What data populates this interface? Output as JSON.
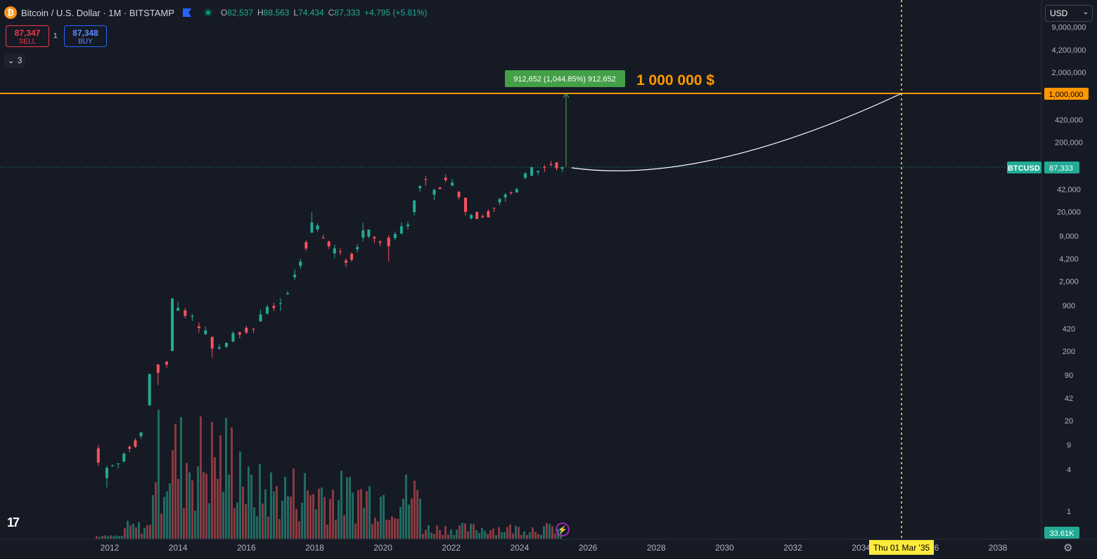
{
  "header": {
    "symbol_title": "Bitcoin / U.S. Dollar · 1M · BITSTAMP",
    "logo_glyph": "₿",
    "ohlc": [
      {
        "key": "O",
        "value": "82,537"
      },
      {
        "key": "H",
        "value": "88,563"
      },
      {
        "key": "L",
        "value": "74,434"
      },
      {
        "key": "C",
        "value": "87,333"
      }
    ],
    "change": "+4,795 (+5.81%)"
  },
  "trade": {
    "sell_price": "87,347",
    "sell_label": "SELL",
    "buy_price": "87,348",
    "buy_label": "BUY",
    "spread": "1"
  },
  "indicators_toggle": {
    "count": "3"
  },
  "currency_select": {
    "selected": "USD"
  },
  "annotations": {
    "target_label": "1 000 000 $",
    "measure_label": "912,652 (1,044.85%) 912,652",
    "date_label": "Thu 01 Mar '35"
  },
  "price_scale": {
    "current_symbol": "BTCUSD",
    "current_price": "87,333",
    "level_label": "1,000,000",
    "volume_label": "33.61K"
  },
  "colors": {
    "up": "#22ab94",
    "down": "#f7525f",
    "target": "#ff9800",
    "date": "#ffeb3b",
    "background": "#161a25"
  },
  "chart_data": {
    "type": "candlestick",
    "scale": "log",
    "interval": "1M",
    "y_ticks": [
      "9,000,000",
      "4,200,000",
      "2,000,000",
      "1,000,000",
      "420,000",
      "200,000",
      "42,000",
      "20,000",
      "9,000",
      "4,200",
      "2,000",
      "900",
      "420",
      "200",
      "90",
      "42",
      "20",
      "9",
      "4",
      "1"
    ],
    "x_ticks": [
      "2012",
      "2014",
      "2016",
      "2018",
      "2020",
      "2022",
      "2024",
      "2026",
      "2028",
      "2030",
      "2032",
      "2034",
      "2036",
      "2038"
    ],
    "target_level": 1000000,
    "target_date": "2035-03-01",
    "current_price": 87333,
    "series": [
      {
        "t": "2011-09",
        "o": 8,
        "h": 9,
        "l": 4.5,
        "c": 5
      },
      {
        "t": "2011-12",
        "o": 3,
        "h": 4.5,
        "l": 2.2,
        "c": 4.2
      },
      {
        "t": "2012-06",
        "o": 5.2,
        "h": 7,
        "l": 5,
        "c": 6.7
      },
      {
        "t": "2012-12",
        "o": 12,
        "h": 14,
        "l": 11,
        "c": 13.5
      },
      {
        "t": "2013-03",
        "o": 33,
        "h": 95,
        "l": 33,
        "c": 93
      },
      {
        "t": "2013-06",
        "o": 128,
        "h": 130,
        "l": 65,
        "c": 97
      },
      {
        "t": "2013-09",
        "o": 140,
        "h": 145,
        "l": 115,
        "c": 128
      },
      {
        "t": "2013-11",
        "o": 200,
        "h": 1160,
        "l": 200,
        "c": 1130
      },
      {
        "t": "2014-01",
        "o": 760,
        "h": 1020,
        "l": 750,
        "c": 830
      },
      {
        "t": "2014-06",
        "o": 630,
        "h": 680,
        "l": 540,
        "c": 640
      },
      {
        "t": "2015-01",
        "o": 320,
        "h": 320,
        "l": 160,
        "c": 217
      },
      {
        "t": "2015-06",
        "o": 230,
        "h": 265,
        "l": 220,
        "c": 263
      },
      {
        "t": "2016-01",
        "o": 430,
        "h": 460,
        "l": 350,
        "c": 368
      },
      {
        "t": "2016-06",
        "o": 530,
        "h": 780,
        "l": 530,
        "c": 670
      },
      {
        "t": "2017-01",
        "o": 970,
        "h": 1150,
        "l": 750,
        "c": 970
      },
      {
        "t": "2017-06",
        "o": 2300,
        "h": 3000,
        "l": 2100,
        "c": 2500
      },
      {
        "t": "2017-12",
        "o": 10000,
        "h": 19600,
        "l": 10000,
        "c": 14000
      },
      {
        "t": "2018-06",
        "o": 7500,
        "h": 7700,
        "l": 5800,
        "c": 6400
      },
      {
        "t": "2018-12",
        "o": 4000,
        "h": 4300,
        "l": 3200,
        "c": 3700
      },
      {
        "t": "2019-06",
        "o": 8500,
        "h": 13800,
        "l": 7500,
        "c": 10800
      },
      {
        "t": "2019-12",
        "o": 7500,
        "h": 7750,
        "l": 6400,
        "c": 7200
      },
      {
        "t": "2020-03",
        "o": 8500,
        "h": 9200,
        "l": 3850,
        "c": 6400
      },
      {
        "t": "2020-12",
        "o": 19700,
        "h": 29300,
        "l": 17600,
        "c": 29000
      },
      {
        "t": "2021-04",
        "o": 58700,
        "h": 64900,
        "l": 47000,
        "c": 57700
      },
      {
        "t": "2021-07",
        "o": 35000,
        "h": 42200,
        "l": 29300,
        "c": 41500
      },
      {
        "t": "2021-11",
        "o": 61300,
        "h": 69000,
        "l": 53000,
        "c": 57000
      },
      {
        "t": "2022-06",
        "o": 31700,
        "h": 31900,
        "l": 17600,
        "c": 19900
      },
      {
        "t": "2022-12",
        "o": 17100,
        "h": 18400,
        "l": 16300,
        "c": 16500
      },
      {
        "t": "2023-06",
        "o": 27200,
        "h": 31400,
        "l": 24800,
        "c": 30400
      },
      {
        "t": "2023-12",
        "o": 37700,
        "h": 44700,
        "l": 37600,
        "c": 42200
      },
      {
        "t": "2024-03",
        "o": 61100,
        "h": 73800,
        "l": 59000,
        "c": 71300
      },
      {
        "t": "2024-12",
        "o": 96400,
        "h": 108300,
        "l": 90500,
        "c": 93400
      },
      {
        "t": "2025-02",
        "o": 102400,
        "h": 102700,
        "l": 78200,
        "c": 84300
      },
      {
        "t": "2025-04",
        "o": 82537,
        "h": 88563,
        "l": 74434,
        "c": 87333
      }
    ]
  }
}
